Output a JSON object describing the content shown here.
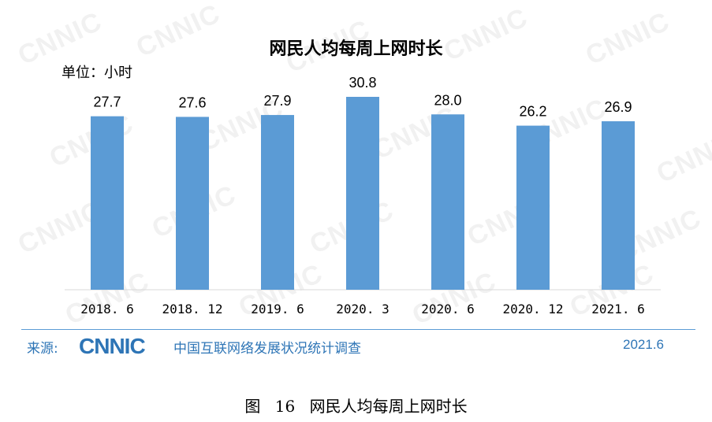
{
  "figure_caption": {
    "label": "图",
    "number": "16",
    "title": "网民人均每周上网时长"
  },
  "unit_label": "单位：小时",
  "source": {
    "label": "来源:",
    "logo_text": "CNNIC",
    "org": "中国互联网络发展状况统计调查",
    "date": "2021.6"
  },
  "watermark_text": "CNNIC",
  "colors": {
    "bar": "#5b9bd5",
    "axis": "#d9d9d9",
    "source_text": "#2e75b6",
    "logo": "#2e75b6"
  },
  "chart_data": {
    "type": "bar",
    "title": "网民人均每周上网时长",
    "xlabel": "",
    "ylabel": "",
    "unit": "小时",
    "categories": [
      "2018. 6",
      "2018. 12",
      "2019. 6",
      "2020. 3",
      "2020. 6",
      "2020. 12",
      "2021. 6"
    ],
    "values": [
      27.7,
      27.6,
      27.9,
      30.8,
      28.0,
      26.2,
      26.9
    ],
    "value_labels": [
      "27.7",
      "27.6",
      "27.9",
      "30.8",
      "28.0",
      "26.2",
      "26.9"
    ],
    "ylim": [
      0,
      30.8
    ],
    "grid": false,
    "legend": "none"
  }
}
